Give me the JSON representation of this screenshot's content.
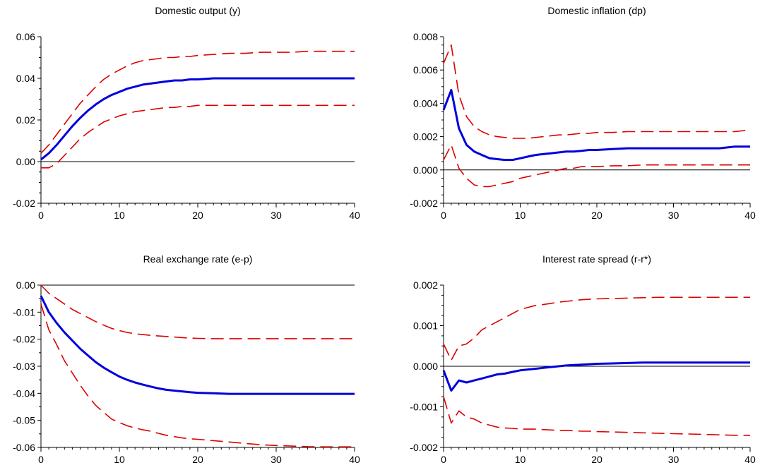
{
  "chart_data": [
    {
      "type": "line",
      "title": "Domestic output (y)",
      "xlabel": "",
      "ylabel": "",
      "xlim": [
        0,
        40
      ],
      "ylim": [
        -0.02,
        0.06
      ],
      "xticks": [
        0,
        10,
        20,
        30,
        40
      ],
      "xtick_labels": [
        "0",
        "10",
        "20",
        "30",
        "40"
      ],
      "yticks": [
        -0.02,
        0,
        0.02,
        0.04,
        0.06
      ],
      "ytick_labels": [
        "-0.02",
        "0.00",
        "0.02",
        "0.04",
        "0.06"
      ],
      "y_minor_per_major": 4,
      "zero_line": true,
      "grid": false,
      "x": [
        0,
        1,
        2,
        3,
        4,
        5,
        6,
        7,
        8,
        9,
        10,
        11,
        12,
        13,
        14,
        15,
        16,
        17,
        18,
        19,
        20,
        22,
        24,
        26,
        28,
        30,
        32,
        34,
        36,
        38,
        40
      ],
      "series": [
        {
          "role": "upper",
          "color": "#dd0000",
          "style": "dashed",
          "values": [
            0.004,
            0.008,
            0.013,
            0.018,
            0.023,
            0.028,
            0.032,
            0.036,
            0.0395,
            0.042,
            0.044,
            0.046,
            0.0475,
            0.0485,
            0.049,
            0.0495,
            0.05,
            0.05,
            0.0505,
            0.0505,
            0.051,
            0.0515,
            0.052,
            0.052,
            0.0525,
            0.0525,
            0.0525,
            0.053,
            0.053,
            0.053,
            0.053
          ]
        },
        {
          "role": "estimate",
          "color": "#0000dd",
          "style": "solid",
          "values": [
            0.001,
            0.004,
            0.008,
            0.0125,
            0.017,
            0.021,
            0.0245,
            0.0275,
            0.03,
            0.032,
            0.0335,
            0.035,
            0.036,
            0.037,
            0.0375,
            0.038,
            0.0385,
            0.039,
            0.039,
            0.0395,
            0.0395,
            0.04,
            0.04,
            0.04,
            0.04,
            0.04,
            0.04,
            0.04,
            0.04,
            0.04,
            0.04
          ]
        },
        {
          "role": "lower",
          "color": "#dd0000",
          "style": "dashed",
          "values": [
            -0.003,
            -0.003,
            -0.001,
            0.003,
            0.007,
            0.011,
            0.014,
            0.0165,
            0.019,
            0.0205,
            0.022,
            0.023,
            0.024,
            0.0245,
            0.025,
            0.0255,
            0.026,
            0.026,
            0.0265,
            0.0265,
            0.027,
            0.027,
            0.027,
            0.027,
            0.027,
            0.027,
            0.027,
            0.027,
            0.027,
            0.027,
            0.027
          ]
        }
      ]
    },
    {
      "type": "line",
      "title": "Domestic inflation (dp)",
      "xlabel": "",
      "ylabel": "",
      "xlim": [
        0,
        40
      ],
      "ylim": [
        -0.002,
        0.008
      ],
      "xticks": [
        0,
        10,
        20,
        30,
        40
      ],
      "xtick_labels": [
        "0",
        "10",
        "20",
        "30",
        "40"
      ],
      "yticks": [
        -0.002,
        0,
        0.002,
        0.004,
        0.006,
        0.008
      ],
      "ytick_labels": [
        "-0.002",
        "0.000",
        "0.002",
        "0.004",
        "0.006",
        "0.008"
      ],
      "y_minor_per_major": 4,
      "zero_line": true,
      "grid": false,
      "x": [
        0,
        1,
        2,
        3,
        4,
        5,
        6,
        7,
        8,
        9,
        10,
        11,
        12,
        13,
        14,
        15,
        16,
        17,
        18,
        19,
        20,
        22,
        24,
        26,
        28,
        30,
        32,
        34,
        36,
        38,
        40
      ],
      "series": [
        {
          "role": "upper",
          "color": "#dd0000",
          "style": "dashed",
          "values": [
            0.0064,
            0.0075,
            0.0045,
            0.0032,
            0.0026,
            0.0023,
            0.0021,
            0.002,
            0.00195,
            0.0019,
            0.0019,
            0.0019,
            0.00195,
            0.002,
            0.00205,
            0.0021,
            0.0021,
            0.00215,
            0.0022,
            0.0022,
            0.00225,
            0.00225,
            0.0023,
            0.0023,
            0.0023,
            0.0023,
            0.0023,
            0.0023,
            0.0023,
            0.0023,
            0.0024
          ]
        },
        {
          "role": "estimate",
          "color": "#0000dd",
          "style": "solid",
          "values": [
            0.0036,
            0.0048,
            0.0025,
            0.0015,
            0.0011,
            0.0009,
            0.0007,
            0.00065,
            0.0006,
            0.0006,
            0.0007,
            0.0008,
            0.0009,
            0.00095,
            0.001,
            0.00105,
            0.0011,
            0.0011,
            0.00115,
            0.0012,
            0.0012,
            0.00125,
            0.0013,
            0.0013,
            0.0013,
            0.0013,
            0.0013,
            0.0013,
            0.0013,
            0.0014,
            0.0014
          ]
        },
        {
          "role": "lower",
          "color": "#dd0000",
          "style": "dashed",
          "values": [
            0.0006,
            0.0015,
            0.0001,
            -0.0005,
            -0.0009,
            -0.001,
            -0.001,
            -0.0009,
            -0.0008,
            -0.0007,
            -0.0005,
            -0.0004,
            -0.0003,
            -0.0002,
            -0.0001,
            0.0,
            0.0001,
            0.0001,
            0.0002,
            0.0002,
            0.0002,
            0.00025,
            0.00025,
            0.0003,
            0.0003,
            0.0003,
            0.0003,
            0.0003,
            0.0003,
            0.0003,
            0.0003
          ]
        }
      ]
    },
    {
      "type": "line",
      "title": "Real exchange rate (e-p)",
      "xlabel": "",
      "ylabel": "",
      "xlim": [
        0,
        40
      ],
      "ylim": [
        -0.06,
        0.0
      ],
      "xticks": [
        0,
        10,
        20,
        30,
        40
      ],
      "xtick_labels": [
        "0",
        "10",
        "20",
        "30",
        "40"
      ],
      "yticks": [
        -0.06,
        -0.05,
        -0.04,
        -0.03,
        -0.02,
        -0.01,
        0.0
      ],
      "ytick_labels": [
        "-0.06",
        "-0.05",
        "-0.04",
        "-0.03",
        "-0.02",
        "-0.01",
        "0.00"
      ],
      "y_minor_per_major": 2,
      "zero_line": true,
      "grid": false,
      "x": [
        0,
        1,
        2,
        3,
        4,
        5,
        6,
        7,
        8,
        9,
        10,
        11,
        12,
        13,
        14,
        15,
        16,
        17,
        18,
        19,
        20,
        22,
        24,
        26,
        28,
        30,
        32,
        34,
        36,
        38,
        40
      ],
      "series": [
        {
          "role": "upper",
          "color": "#dd0000",
          "style": "dashed",
          "values": [
            0.0,
            -0.003,
            -0.005,
            -0.007,
            -0.009,
            -0.0105,
            -0.012,
            -0.0135,
            -0.0148,
            -0.016,
            -0.0168,
            -0.0175,
            -0.018,
            -0.0183,
            -0.0186,
            -0.0188,
            -0.019,
            -0.0192,
            -0.0194,
            -0.0196,
            -0.0197,
            -0.0198,
            -0.0198,
            -0.0198,
            -0.0198,
            -0.0198,
            -0.0198,
            -0.0198,
            -0.0198,
            -0.0198,
            -0.0198
          ]
        },
        {
          "role": "estimate",
          "color": "#0000dd",
          "style": "solid",
          "values": [
            -0.004,
            -0.01,
            -0.014,
            -0.0175,
            -0.0205,
            -0.0235,
            -0.026,
            -0.0285,
            -0.0305,
            -0.0322,
            -0.0338,
            -0.035,
            -0.036,
            -0.0368,
            -0.0375,
            -0.0382,
            -0.0387,
            -0.039,
            -0.0393,
            -0.0396,
            -0.0398,
            -0.04,
            -0.0402,
            -0.0402,
            -0.0402,
            -0.0402,
            -0.0402,
            -0.0402,
            -0.0402,
            -0.0402,
            -0.0402
          ]
        },
        {
          "role": "lower",
          "color": "#dd0000",
          "style": "dashed",
          "values": [
            -0.007,
            -0.0165,
            -0.022,
            -0.028,
            -0.0325,
            -0.037,
            -0.041,
            -0.0445,
            -0.047,
            -0.0495,
            -0.0508,
            -0.052,
            -0.0528,
            -0.0535,
            -0.054,
            -0.0548,
            -0.0555,
            -0.056,
            -0.0565,
            -0.0568,
            -0.057,
            -0.0575,
            -0.058,
            -0.0585,
            -0.059,
            -0.0593,
            -0.0595,
            -0.0597,
            -0.0598,
            -0.0598,
            -0.0598
          ]
        }
      ]
    },
    {
      "type": "line",
      "title": "Interest rate spread (r-r*)",
      "xlabel": "",
      "ylabel": "",
      "xlim": [
        0,
        40
      ],
      "ylim": [
        -0.002,
        0.002
      ],
      "xticks": [
        0,
        10,
        20,
        30,
        40
      ],
      "xtick_labels": [
        "0",
        "10",
        "20",
        "30",
        "40"
      ],
      "yticks": [
        -0.002,
        -0.001,
        0.0,
        0.001,
        0.002
      ],
      "ytick_labels": [
        "-0.002",
        "-0.001",
        "0.000",
        "0.001",
        "0.002"
      ],
      "y_minor_per_major": 4,
      "zero_line": true,
      "grid": false,
      "x": [
        0,
        1,
        2,
        3,
        4,
        5,
        6,
        7,
        8,
        9,
        10,
        11,
        12,
        13,
        14,
        15,
        16,
        17,
        18,
        19,
        20,
        22,
        24,
        26,
        28,
        30,
        32,
        34,
        36,
        38,
        40
      ],
      "series": [
        {
          "role": "upper",
          "color": "#dd0000",
          "style": "dashed",
          "values": [
            0.00055,
            0.00015,
            0.0005,
            0.00055,
            0.0007,
            0.0009,
            0.001,
            0.0011,
            0.0012,
            0.0013,
            0.0014,
            0.00145,
            0.0015,
            0.00152,
            0.00155,
            0.00158,
            0.0016,
            0.00162,
            0.00164,
            0.00165,
            0.00166,
            0.00167,
            0.00168,
            0.00169,
            0.0017,
            0.0017,
            0.0017,
            0.0017,
            0.0017,
            0.0017,
            0.0017
          ]
        },
        {
          "role": "estimate",
          "color": "#0000dd",
          "style": "solid",
          "values": [
            -0.0001,
            -0.0006,
            -0.00035,
            -0.0004,
            -0.00035,
            -0.0003,
            -0.00025,
            -0.0002,
            -0.00018,
            -0.00014,
            -0.0001,
            -8e-05,
            -6e-05,
            -4e-05,
            -2e-05,
            0.0,
            2e-05,
            3e-05,
            4e-05,
            5e-05,
            6e-05,
            7e-05,
            8e-05,
            9e-05,
            9e-05,
            9e-05,
            9e-05,
            9e-05,
            9e-05,
            9e-05,
            9e-05
          ]
        },
        {
          "role": "lower",
          "color": "#dd0000",
          "style": "dashed",
          "values": [
            -0.00075,
            -0.0014,
            -0.0011,
            -0.00125,
            -0.0013,
            -0.0014,
            -0.00145,
            -0.0015,
            -0.00152,
            -0.00153,
            -0.00155,
            -0.00155,
            -0.00155,
            -0.00156,
            -0.00157,
            -0.00158,
            -0.00158,
            -0.00159,
            -0.0016,
            -0.0016,
            -0.00161,
            -0.00162,
            -0.00163,
            -0.00164,
            -0.00165,
            -0.00166,
            -0.00167,
            -0.00168,
            -0.00169,
            -0.0017,
            -0.0017
          ]
        }
      ]
    }
  ]
}
